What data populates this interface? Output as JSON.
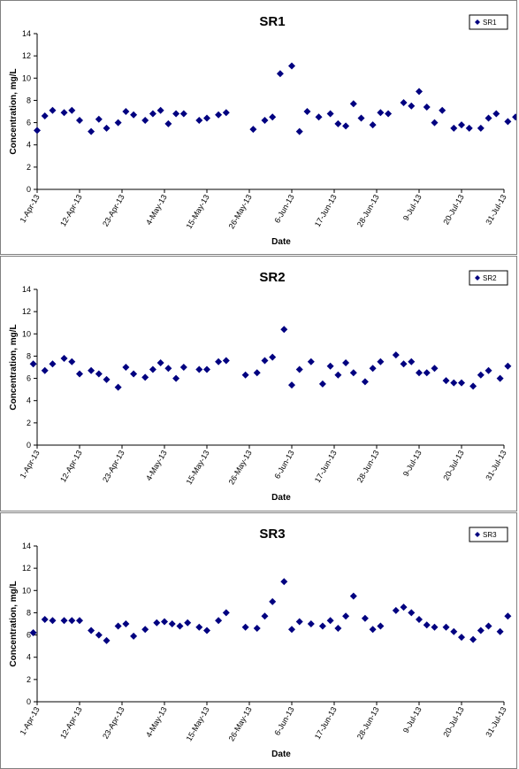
{
  "chart_data": [
    {
      "type": "scatter",
      "title": "SR1",
      "xlabel": "Date",
      "ylabel": "Concentration, mg/L",
      "ylim": [
        0,
        14
      ],
      "yticks": [
        "0",
        "2",
        "4",
        "6",
        "8",
        "10",
        "12",
        "14"
      ],
      "xlim": [
        "2013-04-01",
        "2013-07-31"
      ],
      "xticks": [
        "1-Apr-13",
        "12-Apr-13",
        "23-Apr-13",
        "4-May-13",
        "15-May-13",
        "26-May-13",
        "6-Jun-13",
        "17-Jun-13",
        "28-Jun-13",
        "9-Jul-13",
        "20-Jul-13",
        "31-Jul-13"
      ],
      "grid": false,
      "legend": "top-right",
      "color": "#000080",
      "series": [
        {
          "name": "SR1",
          "points": [
            [
              "2013-04-01",
              5.3
            ],
            [
              "2013-04-03",
              6.6
            ],
            [
              "2013-04-05",
              7.1
            ],
            [
              "2013-04-08",
              6.9
            ],
            [
              "2013-04-10",
              7.1
            ],
            [
              "2013-04-12",
              6.2
            ],
            [
              "2013-04-15",
              5.2
            ],
            [
              "2013-04-17",
              6.3
            ],
            [
              "2013-04-19",
              5.5
            ],
            [
              "2013-04-22",
              6.0
            ],
            [
              "2013-04-24",
              7.0
            ],
            [
              "2013-04-26",
              6.7
            ],
            [
              "2013-04-29",
              6.2
            ],
            [
              "2013-05-01",
              6.8
            ],
            [
              "2013-05-03",
              7.1
            ],
            [
              "2013-05-05",
              5.9
            ],
            [
              "2013-05-07",
              6.8
            ],
            [
              "2013-05-09",
              6.8
            ],
            [
              "2013-05-13",
              6.2
            ],
            [
              "2013-05-15",
              6.4
            ],
            [
              "2013-05-18",
              6.7
            ],
            [
              "2013-05-20",
              6.9
            ],
            [
              "2013-05-27",
              5.4
            ],
            [
              "2013-05-30",
              6.2
            ],
            [
              "2013-06-01",
              6.5
            ],
            [
              "2013-06-03",
              10.4
            ],
            [
              "2013-06-06",
              11.1
            ],
            [
              "2013-06-08",
              5.2
            ],
            [
              "2013-06-10",
              7.0
            ],
            [
              "2013-06-13",
              6.5
            ],
            [
              "2013-06-16",
              6.8
            ],
            [
              "2013-06-18",
              5.9
            ],
            [
              "2013-06-20",
              5.7
            ],
            [
              "2013-06-22",
              7.7
            ],
            [
              "2013-06-24",
              6.4
            ],
            [
              "2013-06-27",
              5.8
            ],
            [
              "2013-06-29",
              6.9
            ],
            [
              "2013-07-01",
              6.8
            ],
            [
              "2013-07-05",
              7.8
            ],
            [
              "2013-07-07",
              7.5
            ],
            [
              "2013-07-09",
              8.8
            ],
            [
              "2013-07-11",
              7.4
            ],
            [
              "2013-07-13",
              6.0
            ],
            [
              "2013-07-15",
              7.1
            ],
            [
              "2013-07-18",
              5.5
            ],
            [
              "2013-07-20",
              5.8
            ],
            [
              "2013-07-22",
              5.5
            ],
            [
              "2013-07-25",
              5.5
            ],
            [
              "2013-07-27",
              6.4
            ],
            [
              "2013-07-29",
              6.8
            ],
            [
              "2013-08-01",
              6.1
            ],
            [
              "2013-08-03",
              6.5
            ]
          ]
        }
      ]
    },
    {
      "type": "scatter",
      "title": "SR2",
      "xlabel": "Date",
      "ylabel": "Concentration, mg/L",
      "ylim": [
        0,
        14
      ],
      "yticks": [
        "0",
        "2",
        "4",
        "6",
        "8",
        "10",
        "12",
        "14"
      ],
      "xlim": [
        "2013-04-01",
        "2013-07-31"
      ],
      "xticks": [
        "1-Apr-13",
        "12-Apr-13",
        "23-Apr-13",
        "4-May-13",
        "15-May-13",
        "26-May-13",
        "6-Jun-13",
        "17-Jun-13",
        "28-Jun-13",
        "9-Jul-13",
        "20-Jul-13",
        "31-Jul-13"
      ],
      "grid": false,
      "legend": "top-right",
      "color": "#000080",
      "series": [
        {
          "name": "SR2",
          "points": [
            [
              "2013-03-31",
              7.3
            ],
            [
              "2013-04-03",
              6.7
            ],
            [
              "2013-04-05",
              7.3
            ],
            [
              "2013-04-08",
              7.8
            ],
            [
              "2013-04-10",
              7.5
            ],
            [
              "2013-04-12",
              6.4
            ],
            [
              "2013-04-15",
              6.7
            ],
            [
              "2013-04-17",
              6.4
            ],
            [
              "2013-04-19",
              5.9
            ],
            [
              "2013-04-22",
              5.2
            ],
            [
              "2013-04-24",
              7.0
            ],
            [
              "2013-04-26",
              6.4
            ],
            [
              "2013-04-29",
              6.1
            ],
            [
              "2013-05-01",
              6.8
            ],
            [
              "2013-05-03",
              7.4
            ],
            [
              "2013-05-05",
              6.9
            ],
            [
              "2013-05-07",
              6.0
            ],
            [
              "2013-05-09",
              7.0
            ],
            [
              "2013-05-13",
              6.8
            ],
            [
              "2013-05-15",
              6.8
            ],
            [
              "2013-05-18",
              7.5
            ],
            [
              "2013-05-20",
              7.6
            ],
            [
              "2013-05-25",
              6.3
            ],
            [
              "2013-05-28",
              6.5
            ],
            [
              "2013-05-30",
              7.6
            ],
            [
              "2013-06-01",
              7.9
            ],
            [
              "2013-06-04",
              10.4
            ],
            [
              "2013-06-06",
              5.4
            ],
            [
              "2013-06-08",
              6.8
            ],
            [
              "2013-06-11",
              7.5
            ],
            [
              "2013-06-14",
              5.5
            ],
            [
              "2013-06-16",
              7.1
            ],
            [
              "2013-06-18",
              6.3
            ],
            [
              "2013-06-20",
              7.4
            ],
            [
              "2013-06-22",
              6.5
            ],
            [
              "2013-06-25",
              5.7
            ],
            [
              "2013-06-27",
              6.9
            ],
            [
              "2013-06-29",
              7.5
            ],
            [
              "2013-07-03",
              8.1
            ],
            [
              "2013-07-05",
              7.3
            ],
            [
              "2013-07-07",
              7.5
            ],
            [
              "2013-07-09",
              6.5
            ],
            [
              "2013-07-11",
              6.5
            ],
            [
              "2013-07-13",
              6.9
            ],
            [
              "2013-07-16",
              5.8
            ],
            [
              "2013-07-18",
              5.6
            ],
            [
              "2013-07-20",
              5.6
            ],
            [
              "2013-07-23",
              5.3
            ],
            [
              "2013-07-25",
              6.3
            ],
            [
              "2013-07-27",
              6.7
            ],
            [
              "2013-07-30",
              6.0
            ],
            [
              "2013-08-01",
              7.1
            ]
          ]
        }
      ]
    },
    {
      "type": "scatter",
      "title": "SR3",
      "xlabel": "Date",
      "ylabel": "Concentration, mg/L",
      "ylim": [
        0,
        14
      ],
      "yticks": [
        "0",
        "2",
        "4",
        "6",
        "8",
        "10",
        "12",
        "14"
      ],
      "xlim": [
        "2013-04-01",
        "2013-07-31"
      ],
      "xticks": [
        "1-Apr-13",
        "12-Apr-13",
        "23-Apr-13",
        "4-May-13",
        "15-May-13",
        "26-May-13",
        "6-Jun-13",
        "17-Jun-13",
        "28-Jun-13",
        "9-Jul-13",
        "20-Jul-13",
        "31-Jul-13"
      ],
      "grid": false,
      "legend": "top-right",
      "color": "#000080",
      "series": [
        {
          "name": "SR3",
          "points": [
            [
              "2013-03-31",
              6.2
            ],
            [
              "2013-04-03",
              7.4
            ],
            [
              "2013-04-05",
              7.3
            ],
            [
              "2013-04-08",
              7.3
            ],
            [
              "2013-04-10",
              7.3
            ],
            [
              "2013-04-12",
              7.3
            ],
            [
              "2013-04-15",
              6.4
            ],
            [
              "2013-04-17",
              6.0
            ],
            [
              "2013-04-19",
              5.5
            ],
            [
              "2013-04-22",
              6.8
            ],
            [
              "2013-04-24",
              7.0
            ],
            [
              "2013-04-26",
              5.9
            ],
            [
              "2013-04-29",
              6.5
            ],
            [
              "2013-05-02",
              7.1
            ],
            [
              "2013-05-04",
              7.2
            ],
            [
              "2013-05-06",
              7.0
            ],
            [
              "2013-05-08",
              6.8
            ],
            [
              "2013-05-10",
              7.1
            ],
            [
              "2013-05-13",
              6.7
            ],
            [
              "2013-05-15",
              6.4
            ],
            [
              "2013-05-18",
              7.3
            ],
            [
              "2013-05-20",
              8.0
            ],
            [
              "2013-05-25",
              6.7
            ],
            [
              "2013-05-28",
              6.6
            ],
            [
              "2013-05-30",
              7.7
            ],
            [
              "2013-06-01",
              9.0
            ],
            [
              "2013-06-04",
              10.8
            ],
            [
              "2013-06-06",
              6.5
            ],
            [
              "2013-06-08",
              7.2
            ],
            [
              "2013-06-11",
              7.0
            ],
            [
              "2013-06-14",
              6.8
            ],
            [
              "2013-06-16",
              7.3
            ],
            [
              "2013-06-18",
              6.6
            ],
            [
              "2013-06-20",
              7.7
            ],
            [
              "2013-06-22",
              9.5
            ],
            [
              "2013-06-25",
              7.5
            ],
            [
              "2013-06-27",
              6.5
            ],
            [
              "2013-06-29",
              6.8
            ],
            [
              "2013-07-03",
              8.2
            ],
            [
              "2013-07-05",
              8.5
            ],
            [
              "2013-07-07",
              8.0
            ],
            [
              "2013-07-09",
              7.4
            ],
            [
              "2013-07-11",
              6.9
            ],
            [
              "2013-07-13",
              6.7
            ],
            [
              "2013-07-16",
              6.7
            ],
            [
              "2013-07-18",
              6.3
            ],
            [
              "2013-07-20",
              5.8
            ],
            [
              "2013-07-23",
              5.6
            ],
            [
              "2013-07-25",
              6.4
            ],
            [
              "2013-07-27",
              6.8
            ],
            [
              "2013-07-30",
              6.3
            ],
            [
              "2013-08-01",
              7.7
            ]
          ]
        }
      ]
    }
  ]
}
